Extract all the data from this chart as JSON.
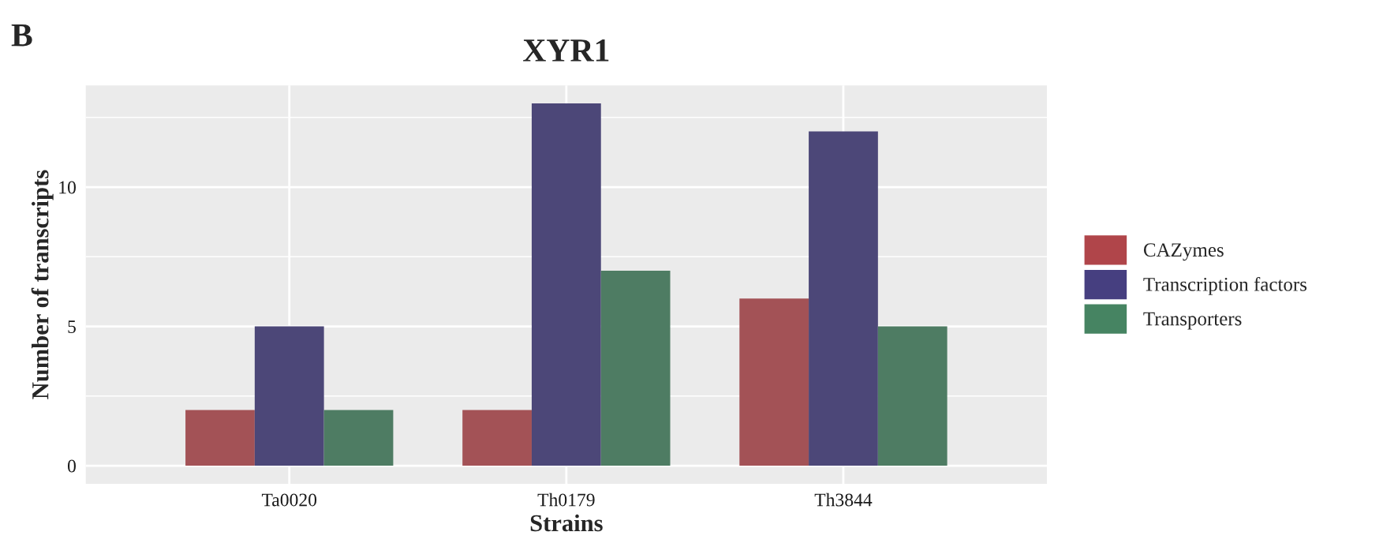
{
  "chart_data": {
    "type": "bar",
    "title": "XYR1",
    "xlabel": "Strains",
    "ylabel": "Number of transcripts",
    "annotations": [
      "B"
    ],
    "categories": [
      "Ta0020",
      "Th0179",
      "Th3844"
    ],
    "series": [
      {
        "name": "CAZymes",
        "color": "#b0454a",
        "values": [
          2,
          2,
          6
        ]
      },
      {
        "name": "Transcription factors",
        "color": "#463f80",
        "values": [
          5,
          13,
          12
        ]
      },
      {
        "name": "Transporters",
        "color": "#468462",
        "values": [
          2,
          7,
          5
        ]
      }
    ],
    "ylim": [
      -0.65,
      13.65
    ],
    "yticks": [
      0,
      5,
      10
    ],
    "grid": true,
    "legend": "right"
  }
}
